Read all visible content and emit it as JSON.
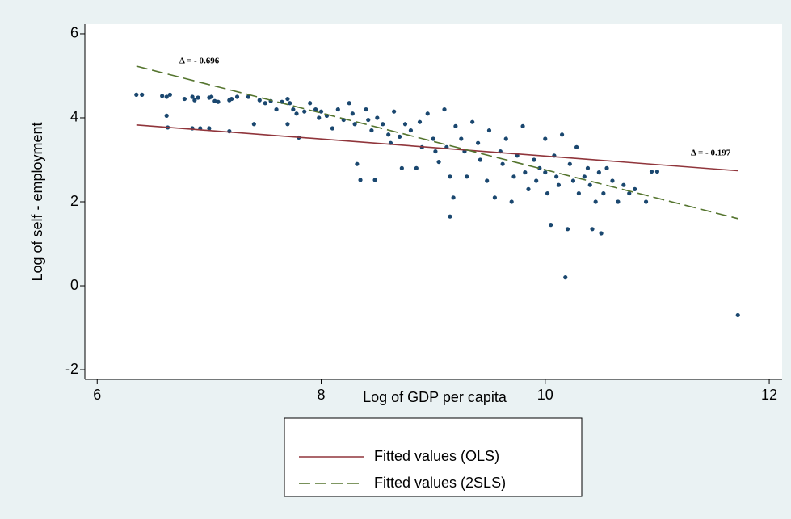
{
  "chart_data": {
    "type": "scatter",
    "x_label": "Log of GDP per capita",
    "y_label": "Log of self - employment",
    "xlim": [
      5.89,
      12.115
    ],
    "ylim": [
      -2.23,
      6.23
    ],
    "xticks": [
      6,
      8,
      10,
      12
    ],
    "yticks": [
      -2,
      0,
      2,
      4,
      6
    ],
    "grid": false,
    "annotations": [
      "Δ = - 0.696",
      "Δ = - 0.197"
    ],
    "points": {
      "color": "#1a476f",
      "x": [
        6.35,
        6.4,
        6.58,
        6.62,
        6.65,
        6.62,
        6.63,
        6.78,
        6.85,
        6.87,
        6.9,
        6.85,
        6.92,
        7.0,
        7.02,
        7.05,
        7.08,
        7.0,
        7.18,
        7.2,
        7.18,
        7.25,
        7.35,
        7.4,
        7.45,
        7.5,
        7.55,
        7.6,
        7.65,
        7.7,
        7.72,
        7.75,
        7.7,
        7.78,
        7.8,
        7.85,
        7.9,
        7.95,
        7.98,
        8.0,
        8.05,
        8.1,
        8.15,
        8.2,
        8.25,
        8.28,
        8.3,
        8.32,
        8.35,
        8.4,
        8.42,
        8.45,
        8.48,
        8.5,
        8.55,
        8.6,
        8.62,
        8.65,
        8.7,
        8.72,
        8.75,
        8.8,
        8.85,
        8.88,
        8.9,
        8.95,
        9.0,
        9.02,
        9.05,
        9.1,
        9.12,
        9.15,
        9.18,
        9.15,
        9.2,
        9.25,
        9.28,
        9.3,
        9.35,
        9.4,
        9.42,
        9.48,
        9.5,
        9.55,
        9.6,
        9.62,
        9.65,
        9.7,
        9.72,
        9.75,
        9.8,
        9.82,
        9.85,
        9.9,
        9.92,
        9.95,
        10.0,
        10.0,
        10.02,
        10.05,
        10.08,
        10.1,
        10.12,
        10.15,
        10.18,
        10.2,
        10.22,
        10.25,
        10.28,
        10.3,
        10.35,
        10.38,
        10.4,
        10.42,
        10.45,
        10.48,
        10.5,
        10.52,
        10.55,
        10.6,
        10.65,
        10.7,
        10.75,
        10.8,
        10.9,
        10.95,
        11.0,
        11.72
      ],
      "values": [
        4.55,
        4.55,
        4.52,
        4.5,
        4.55,
        4.05,
        3.77,
        4.45,
        4.5,
        4.42,
        4.48,
        3.75,
        3.75,
        4.48,
        4.5,
        4.4,
        4.38,
        3.75,
        4.42,
        4.45,
        3.68,
        4.5,
        4.5,
        3.85,
        4.42,
        4.35,
        4.4,
        4.2,
        4.38,
        4.45,
        4.35,
        4.2,
        3.85,
        4.1,
        3.53,
        4.15,
        4.35,
        4.2,
        4.0,
        4.15,
        4.05,
        3.75,
        4.2,
        3.95,
        4.35,
        4.1,
        3.85,
        2.9,
        2.52,
        4.2,
        3.95,
        3.7,
        2.52,
        4.0,
        3.85,
        3.6,
        3.4,
        4.15,
        3.55,
        2.8,
        3.85,
        3.7,
        2.8,
        3.9,
        3.3,
        4.1,
        3.5,
        3.2,
        2.95,
        4.2,
        3.3,
        2.6,
        2.1,
        1.65,
        3.8,
        3.5,
        3.2,
        2.6,
        3.9,
        3.4,
        3.0,
        2.5,
        3.7,
        2.1,
        3.2,
        2.9,
        3.5,
        2.0,
        2.6,
        3.1,
        3.8,
        2.7,
        2.3,
        3.0,
        2.5,
        2.8,
        3.5,
        2.7,
        2.2,
        1.45,
        3.1,
        2.6,
        2.4,
        3.6,
        0.2,
        1.35,
        2.9,
        2.5,
        3.3,
        2.2,
        2.6,
        2.8,
        2.4,
        1.35,
        2.0,
        2.7,
        1.25,
        2.2,
        2.8,
        2.5,
        2.0,
        2.4,
        2.2,
        2.3,
        2.0,
        2.72,
        2.72,
        -0.7
      ]
    },
    "series": [
      {
        "name": "Fitted values (OLS)",
        "color": "#90353b",
        "dash": false,
        "x": [
          6.35,
          11.72
        ],
        "values": [
          3.83,
          2.74
        ]
      },
      {
        "name": "Fitted values (2SLS)",
        "color": "#55752f",
        "dash": true,
        "x": [
          6.35,
          11.72
        ],
        "values": [
          5.23,
          1.6
        ]
      }
    ]
  }
}
